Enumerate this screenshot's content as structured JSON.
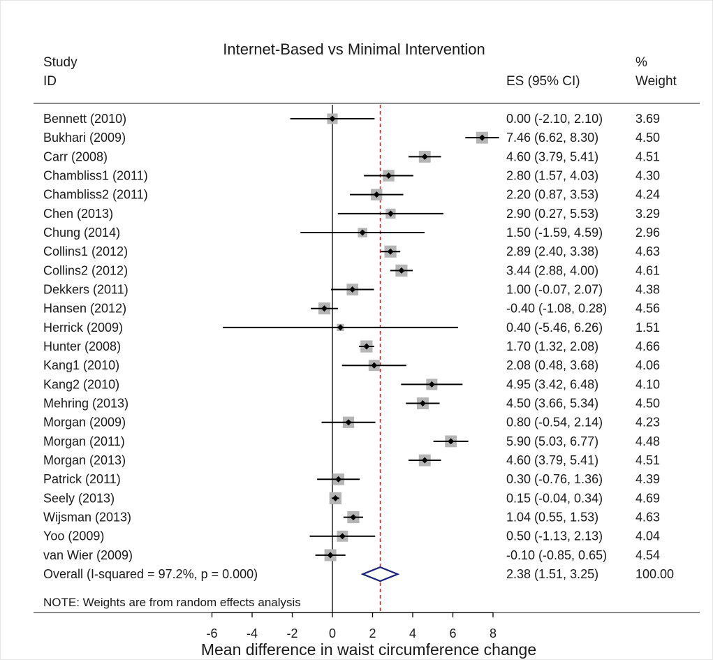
{
  "chart_data": {
    "type": "forest",
    "title": "Internet-Based vs Minimal Intervention",
    "header": {
      "study_line1": "Study",
      "study_line2": "ID",
      "es": "ES (95% CI)",
      "weight_line1": "%",
      "weight_line2": "Weight"
    },
    "xlabel": "Mean difference in waist circumference change",
    "xticks": [
      -6,
      -4,
      -2,
      0,
      2,
      4,
      6,
      8
    ],
    "xlim": [
      -6.2,
      8.6
    ],
    "reference_line": 0,
    "pooled_line": 2.38,
    "studies": [
      {
        "label": "Bennett (2010)",
        "es": 0.0,
        "lo": -2.1,
        "hi": 2.1,
        "ci_text": "0.00 (-2.10, 2.10)",
        "weight": "3.69"
      },
      {
        "label": "Bukhari (2009)",
        "es": 7.46,
        "lo": 6.62,
        "hi": 8.3,
        "ci_text": "7.46 (6.62, 8.30)",
        "weight": "4.50"
      },
      {
        "label": "Carr (2008)",
        "es": 4.6,
        "lo": 3.79,
        "hi": 5.41,
        "ci_text": "4.60 (3.79, 5.41)",
        "weight": "4.51"
      },
      {
        "label": "Chambliss1 (2011)",
        "es": 2.8,
        "lo": 1.57,
        "hi": 4.03,
        "ci_text": "2.80 (1.57, 4.03)",
        "weight": "4.30"
      },
      {
        "label": "Chambliss2 (2011)",
        "es": 2.2,
        "lo": 0.87,
        "hi": 3.53,
        "ci_text": "2.20 (0.87, 3.53)",
        "weight": "4.24"
      },
      {
        "label": "Chen (2013)",
        "es": 2.9,
        "lo": 0.27,
        "hi": 5.53,
        "ci_text": "2.90 (0.27, 5.53)",
        "weight": "3.29"
      },
      {
        "label": "Chung (2014)",
        "es": 1.5,
        "lo": -1.59,
        "hi": 4.59,
        "ci_text": "1.50 (-1.59, 4.59)",
        "weight": "2.96"
      },
      {
        "label": "Collins1 (2012)",
        "es": 2.89,
        "lo": 2.4,
        "hi": 3.38,
        "ci_text": "2.89 (2.40, 3.38)",
        "weight": "4.63"
      },
      {
        "label": "Collins2 (2012)",
        "es": 3.44,
        "lo": 2.88,
        "hi": 4.0,
        "ci_text": "3.44 (2.88, 4.00)",
        "weight": "4.61"
      },
      {
        "label": "Dekkers (2011)",
        "es": 1.0,
        "lo": -0.07,
        "hi": 2.07,
        "ci_text": "1.00 (-0.07, 2.07)",
        "weight": "4.38"
      },
      {
        "label": "Hansen (2012)",
        "es": -0.4,
        "lo": -1.08,
        "hi": 0.28,
        "ci_text": "-0.40 (-1.08, 0.28)",
        "weight": "4.56"
      },
      {
        "label": "Herrick (2009)",
        "es": 0.4,
        "lo": -5.46,
        "hi": 6.26,
        "ci_text": "0.40 (-5.46, 6.26)",
        "weight": "1.51"
      },
      {
        "label": "Hunter (2008)",
        "es": 1.7,
        "lo": 1.32,
        "hi": 2.08,
        "ci_text": "1.70 (1.32, 2.08)",
        "weight": "4.66"
      },
      {
        "label": "Kang1 (2010)",
        "es": 2.08,
        "lo": 0.48,
        "hi": 3.68,
        "ci_text": "2.08 (0.48, 3.68)",
        "weight": "4.06"
      },
      {
        "label": "Kang2 (2010)",
        "es": 4.95,
        "lo": 3.42,
        "hi": 6.48,
        "ci_text": "4.95 (3.42, 6.48)",
        "weight": "4.10"
      },
      {
        "label": "Mehring (2013)",
        "es": 4.5,
        "lo": 3.66,
        "hi": 5.34,
        "ci_text": "4.50 (3.66, 5.34)",
        "weight": "4.50"
      },
      {
        "label": "Morgan (2009)",
        "es": 0.8,
        "lo": -0.54,
        "hi": 2.14,
        "ci_text": "0.80 (-0.54, 2.14)",
        "weight": "4.23"
      },
      {
        "label": "Morgan (2011)",
        "es": 5.9,
        "lo": 5.03,
        "hi": 6.77,
        "ci_text": "5.90 (5.03, 6.77)",
        "weight": "4.48"
      },
      {
        "label": "Morgan (2013)",
        "es": 4.6,
        "lo": 3.79,
        "hi": 5.41,
        "ci_text": "4.60 (3.79, 5.41)",
        "weight": "4.51"
      },
      {
        "label": "Patrick (2011)",
        "es": 0.3,
        "lo": -0.76,
        "hi": 1.36,
        "ci_text": "0.30 (-0.76, 1.36)",
        "weight": "4.39"
      },
      {
        "label": "Seely (2013)",
        "es": 0.15,
        "lo": -0.04,
        "hi": 0.34,
        "ci_text": "0.15 (-0.04, 0.34)",
        "weight": "4.69"
      },
      {
        "label": "Wijsman (2013)",
        "es": 1.04,
        "lo": 0.55,
        "hi": 1.53,
        "ci_text": "1.04 (0.55, 1.53)",
        "weight": "4.63"
      },
      {
        "label": "Yoo (2009)",
        "es": 0.5,
        "lo": -1.13,
        "hi": 2.13,
        "ci_text": "0.50 (-1.13, 2.13)",
        "weight": "4.04"
      },
      {
        "label": "van Wier (2009)",
        "es": -0.1,
        "lo": -0.85,
        "hi": 0.65,
        "ci_text": "-0.10 (-0.85, 0.65)",
        "weight": "4.54"
      }
    ],
    "overall": {
      "label": "Overall  (I-squared = 97.2%, p = 0.000)",
      "es": 2.38,
      "lo": 1.51,
      "hi": 3.25,
      "ci_text": "2.38 (1.51, 3.25)",
      "weight": "100.00"
    },
    "note": "NOTE: Weights are from random effects analysis",
    "colors": {
      "marker_box": "#b5b5b5",
      "ci_line": "#000000",
      "pooled_line": "#b22222",
      "diamond": "#1a237e",
      "text": "#1a1a1a"
    }
  }
}
